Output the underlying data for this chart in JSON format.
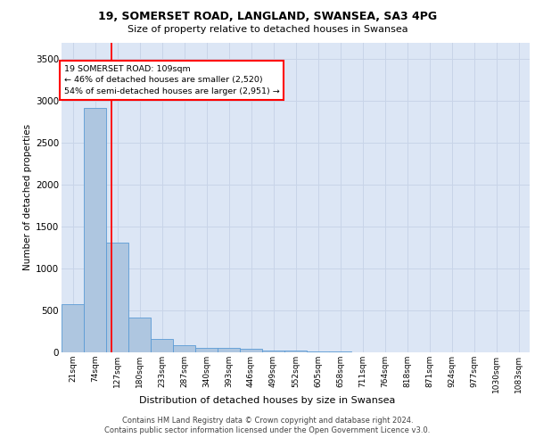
{
  "title1": "19, SOMERSET ROAD, LANGLAND, SWANSEA, SA3 4PG",
  "title2": "Size of property relative to detached houses in Swansea",
  "xlabel": "Distribution of detached houses by size in Swansea",
  "ylabel": "Number of detached properties",
  "bin_labels": [
    "21sqm",
    "74sqm",
    "127sqm",
    "180sqm",
    "233sqm",
    "287sqm",
    "340sqm",
    "393sqm",
    "446sqm",
    "499sqm",
    "552sqm",
    "605sqm",
    "658sqm",
    "711sqm",
    "764sqm",
    "818sqm",
    "871sqm",
    "924sqm",
    "977sqm",
    "1030sqm",
    "1083sqm"
  ],
  "bar_values": [
    570,
    2920,
    1310,
    410,
    155,
    80,
    55,
    48,
    38,
    25,
    18,
    12,
    8,
    5,
    4,
    3,
    2,
    2,
    1,
    1,
    1
  ],
  "bar_color": "#aec6e0",
  "bar_edgecolor": "#5b9bd5",
  "grid_color": "#c8d4e8",
  "background_color": "#dce6f5",
  "red_line_x": 1.72,
  "annotation_box_text": "19 SOMERSET ROAD: 109sqm\n← 46% of detached houses are smaller (2,520)\n54% of semi-detached houses are larger (2,951) →",
  "ylim": [
    0,
    3700
  ],
  "yticks": [
    0,
    500,
    1000,
    1500,
    2000,
    2500,
    3000,
    3500
  ],
  "footer1": "Contains HM Land Registry data © Crown copyright and database right 2024.",
  "footer2": "Contains public sector information licensed under the Open Government Licence v3.0."
}
